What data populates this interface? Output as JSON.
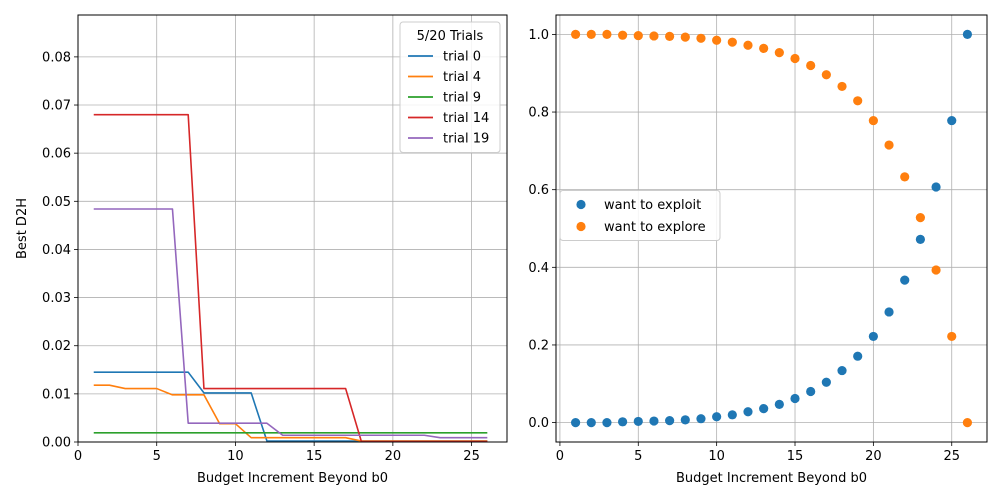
{
  "chart_data": [
    {
      "type": "line",
      "xlabel": "Budget Increment Beyond b0",
      "ylabel": "Best D2H",
      "xlim": [
        0,
        27.25
      ],
      "ylim": [
        0,
        0.0887
      ],
      "xticks": [
        0,
        5,
        10,
        15,
        20,
        25
      ],
      "xtick_labels": [
        "0",
        "5",
        "10",
        "15",
        "20",
        "25"
      ],
      "yticks": [
        0,
        0.01,
        0.02,
        0.03,
        0.04,
        0.05,
        0.06,
        0.07,
        0.08
      ],
      "ytick_labels": [
        "0.00",
        "0.01",
        "0.02",
        "0.03",
        "0.04",
        "0.05",
        "0.06",
        "0.07",
        "0.08"
      ],
      "grid": true,
      "legend": {
        "title": "5/20 Trials",
        "placement": "top-right"
      },
      "x": [
        1,
        2,
        3,
        4,
        5,
        6,
        7,
        8,
        9,
        10,
        11,
        12,
        13,
        14,
        15,
        16,
        17,
        18,
        19,
        20,
        21,
        22,
        23,
        24,
        25,
        26
      ],
      "series": [
        {
          "name": "trial 0",
          "color": "#1f77b4",
          "values": [
            0.0145,
            0.0145,
            0.0145,
            0.0145,
            0.0145,
            0.0145,
            0.0145,
            0.0102,
            0.0102,
            0.0102,
            0.0102,
            0.0002,
            0.0002,
            0.0002,
            0.0002,
            0.0002,
            0.0002,
            0.0002,
            0.0002,
            0.0002,
            0.0002,
            0.0002,
            0.0002,
            0.0002,
            0.0002,
            0.0002
          ]
        },
        {
          "name": "trial 4",
          "color": "#ff7f0e",
          "values": [
            0.0118,
            0.0118,
            0.0111,
            0.0111,
            0.0111,
            0.0098,
            0.0098,
            0.0098,
            0.0038,
            0.0038,
            0.0009,
            0.0009,
            0.0009,
            0.0009,
            0.0009,
            0.0009,
            0.0009,
            0.0002,
            0.0002,
            0.0002,
            0.0002,
            0.0002,
            0.0002,
            0.0002,
            0.0002,
            0.0002
          ]
        },
        {
          "name": "trial 9",
          "color": "#2ca02c",
          "values": [
            0.0019,
            0.0019,
            0.0019,
            0.0019,
            0.0019,
            0.0019,
            0.0019,
            0.0019,
            0.0019,
            0.0019,
            0.0019,
            0.0019,
            0.0019,
            0.0019,
            0.0019,
            0.0019,
            0.0019,
            0.0019,
            0.0019,
            0.0019,
            0.0019,
            0.0019,
            0.0019,
            0.0019,
            0.0019,
            0.0019
          ]
        },
        {
          "name": "trial 14",
          "color": "#d62728",
          "values": [
            0.068,
            0.068,
            0.068,
            0.068,
            0.068,
            0.068,
            0.068,
            0.0111,
            0.0111,
            0.0111,
            0.0111,
            0.0111,
            0.0111,
            0.0111,
            0.0111,
            0.0111,
            0.0111,
            0.0001,
            0.0001,
            0.0001,
            0.0001,
            0.0001,
            0.0001,
            0.0001,
            0.0001,
            0.0001
          ]
        },
        {
          "name": "trial 19",
          "color": "#9467bd",
          "values": [
            0.0484,
            0.0484,
            0.0484,
            0.0484,
            0.0484,
            0.0484,
            0.0039,
            0.0039,
            0.0039,
            0.0039,
            0.0039,
            0.0039,
            0.0014,
            0.0014,
            0.0014,
            0.0014,
            0.0014,
            0.0014,
            0.0014,
            0.0014,
            0.0014,
            0.0014,
            0.0009,
            0.0009,
            0.0009,
            0.0009
          ]
        }
      ]
    },
    {
      "type": "scatter",
      "xlabel": "Budget Increment Beyond b0",
      "ylabel": "",
      "xlim": [
        -0.25,
        27.25
      ],
      "ylim": [
        -0.05,
        1.05
      ],
      "xticks": [
        0,
        5,
        10,
        15,
        20,
        25
      ],
      "xtick_labels": [
        "0",
        "5",
        "10",
        "15",
        "20",
        "25"
      ],
      "yticks": [
        0,
        0.2,
        0.4,
        0.6,
        0.8,
        1.0
      ],
      "ytick_labels": [
        "0.0",
        "0.2",
        "0.4",
        "0.6",
        "0.8",
        "1.0"
      ],
      "grid": true,
      "legend": {
        "title": "",
        "placement": "center-left"
      },
      "x": [
        1,
        2,
        3,
        4,
        5,
        6,
        7,
        8,
        9,
        10,
        11,
        12,
        13,
        14,
        15,
        16,
        17,
        18,
        19,
        20,
        21,
        22,
        23,
        24,
        25,
        26
      ],
      "series": [
        {
          "name": "want to exploit",
          "color": "#1f77b4",
          "values": [
            0.0,
            0.0,
            0.0,
            0.002,
            0.003,
            0.004,
            0.005,
            0.007,
            0.01,
            0.015,
            0.02,
            0.028,
            0.036,
            0.047,
            0.062,
            0.08,
            0.104,
            0.134,
            0.171,
            0.222,
            0.285,
            0.367,
            0.472,
            0.607,
            0.778,
            1.0
          ]
        },
        {
          "name": "want to explore",
          "color": "#ff7f0e",
          "values": [
            1.0,
            1.0,
            1.0,
            0.998,
            0.997,
            0.996,
            0.995,
            0.993,
            0.99,
            0.985,
            0.98,
            0.972,
            0.964,
            0.953,
            0.938,
            0.92,
            0.896,
            0.866,
            0.829,
            0.778,
            0.715,
            0.633,
            0.528,
            0.393,
            0.222,
            0.0
          ]
        }
      ]
    }
  ]
}
